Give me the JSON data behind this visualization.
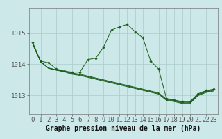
{
  "title": "Graphe pression niveau de la mer (hPa)",
  "bg_color": "#cce8e8",
  "grid_color": "#aacccc",
  "line_color": "#1a5c1a",
  "marker_color": "#1a5c1a",
  "ylim": [
    1012.4,
    1015.8
  ],
  "xlim": [
    -0.5,
    23.5
  ],
  "yticks": [
    1013,
    1014,
    1015
  ],
  "xticks": [
    0,
    1,
    2,
    3,
    4,
    5,
    6,
    7,
    8,
    9,
    10,
    11,
    12,
    13,
    14,
    15,
    16,
    17,
    18,
    19,
    20,
    21,
    22,
    23
  ],
  "tick_fontsize": 6.5,
  "title_fontsize": 7.0,
  "y_peak": [
    1014.7,
    1014.1,
    1014.05,
    1013.85,
    1013.78,
    1013.75,
    1013.75,
    1014.15,
    1014.2,
    1014.55,
    1015.1,
    1015.2,
    1015.28,
    1015.05,
    1014.85,
    1014.1,
    1013.85,
    1012.9,
    1012.85,
    1012.8,
    1012.8,
    1013.05,
    1013.15,
    1013.2
  ],
  "y_flat1": [
    1014.65,
    1014.08,
    1013.88,
    1013.82,
    1013.78,
    1013.72,
    1013.68,
    1013.62,
    1013.56,
    1013.5,
    1013.44,
    1013.38,
    1013.32,
    1013.26,
    1013.2,
    1013.14,
    1013.08,
    1012.88,
    1012.84,
    1012.78,
    1012.78,
    1013.03,
    1013.13,
    1013.18
  ],
  "y_flat2": [
    1014.65,
    1014.08,
    1013.88,
    1013.82,
    1013.77,
    1013.7,
    1013.66,
    1013.6,
    1013.54,
    1013.48,
    1013.42,
    1013.36,
    1013.3,
    1013.24,
    1013.18,
    1013.12,
    1013.06,
    1012.86,
    1012.82,
    1012.76,
    1012.76,
    1013.01,
    1013.11,
    1013.16
  ],
  "y_flat3": [
    1014.65,
    1014.08,
    1013.87,
    1013.81,
    1013.76,
    1013.68,
    1013.64,
    1013.58,
    1013.52,
    1013.46,
    1013.4,
    1013.34,
    1013.28,
    1013.22,
    1013.16,
    1013.1,
    1013.04,
    1012.84,
    1012.8,
    1012.74,
    1012.74,
    1012.99,
    1013.09,
    1013.14
  ]
}
